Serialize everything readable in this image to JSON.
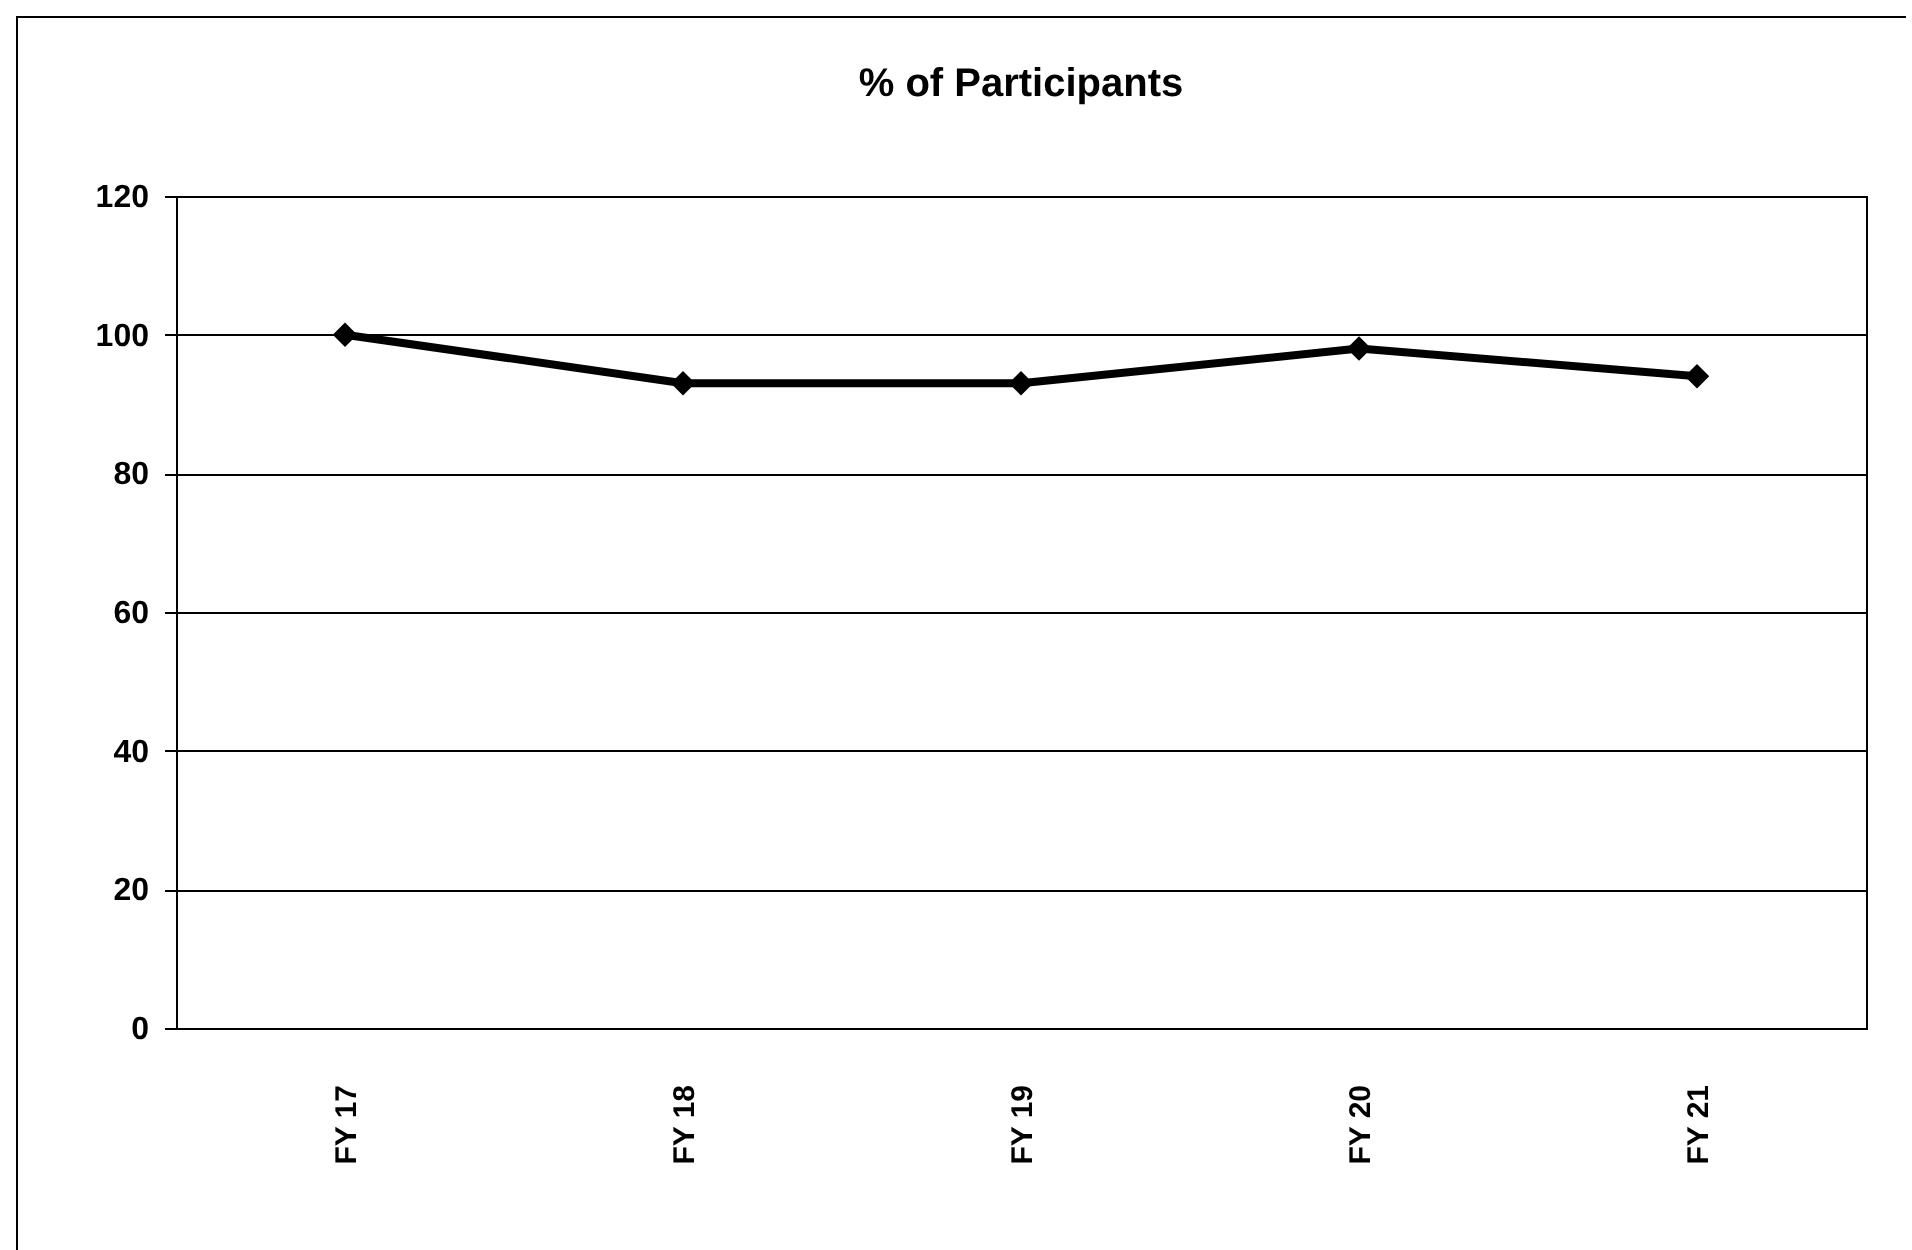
{
  "chart_data": {
    "type": "line",
    "title": "% of Participants",
    "categories": [
      "FY 17",
      "FY 18",
      "FY 19",
      "FY  20",
      "FY 21"
    ],
    "series": [
      {
        "color": "#000000",
        "values": [
          100,
          93,
          93,
          98,
          94
        ]
      }
    ],
    "ylim": [
      0,
      120
    ],
    "yticks": [
      0,
      20,
      40,
      60,
      80,
      100,
      120
    ],
    "grid": "y",
    "legend": false,
    "marker": "diamond",
    "line_style": "solid"
  }
}
